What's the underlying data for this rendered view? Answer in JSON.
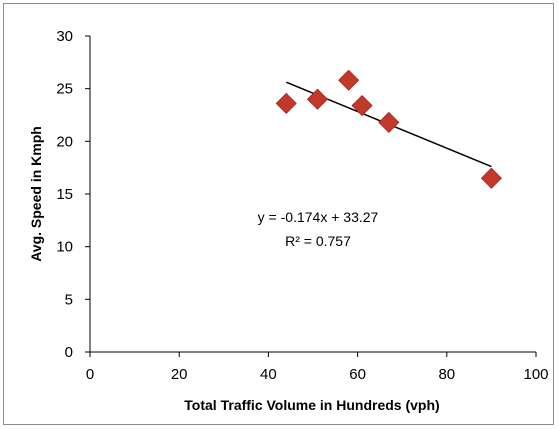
{
  "chart_data": {
    "type": "scatter",
    "title": "",
    "xlabel": "Total Traffic Volume in Hundreds (vph)",
    "ylabel": "Avg. Speed in Kmph",
    "xlim": [
      0,
      100
    ],
    "ylim": [
      0,
      30
    ],
    "x_ticks": [
      0,
      20,
      40,
      60,
      80,
      100
    ],
    "y_ticks": [
      0,
      5,
      10,
      15,
      20,
      25,
      30
    ],
    "grid": false,
    "legend": "none",
    "marker": "diamond",
    "marker_color": "#c0392b",
    "points": [
      {
        "x": 44,
        "y": 23.6
      },
      {
        "x": 51,
        "y": 24.0
      },
      {
        "x": 58,
        "y": 25.8
      },
      {
        "x": 61,
        "y": 23.4
      },
      {
        "x": 67,
        "y": 21.8
      },
      {
        "x": 90,
        "y": 16.5
      }
    ],
    "trendline": {
      "type": "linear",
      "slope": -0.174,
      "intercept": 33.27,
      "x_range": [
        44,
        90
      ],
      "equation_label": "y = -0.174x + 33.27",
      "r2_label": "R² = 0.757"
    }
  }
}
